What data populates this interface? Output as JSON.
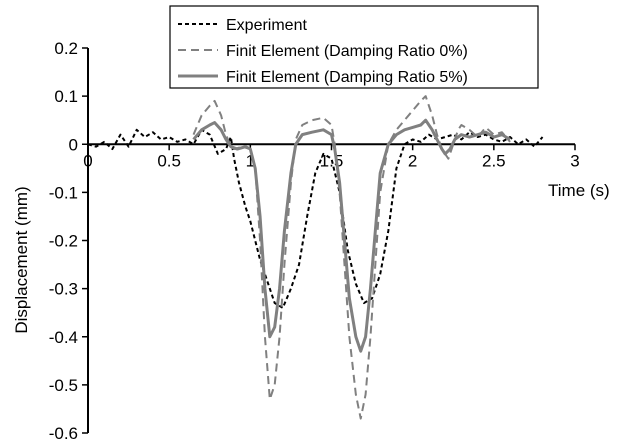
{
  "chart_data": {
    "type": "line",
    "title": "",
    "xlabel": "Time (s)",
    "ylabel": "Displacement (mm)",
    "xlim": [
      0,
      3
    ],
    "ylim": [
      -0.6,
      0.2
    ],
    "x_ticks": [
      0,
      0.5,
      1,
      1.5,
      2,
      2.5,
      3
    ],
    "x_tick_labels": [
      "0",
      "0.5",
      "1",
      "1.5",
      "2",
      "2.5",
      "3"
    ],
    "y_ticks": [
      0.2,
      0.1,
      0,
      -0.1,
      -0.2,
      -0.3,
      -0.4,
      -0.5,
      -0.6
    ],
    "y_tick_labels": [
      "0.2",
      "0.1",
      "0",
      "-0.1",
      "-0.2",
      "-0.3",
      "-0.4",
      "-0.5",
      "-0.6"
    ],
    "grid": false,
    "legend_position": "top-right",
    "series": [
      {
        "name": "Experiment",
        "style": "dotted",
        "color": "#000000",
        "points": [
          [
            0,
            0
          ],
          [
            0.05,
            -0.005
          ],
          [
            0.1,
            0.005
          ],
          [
            0.15,
            -0.01
          ],
          [
            0.2,
            0.02
          ],
          [
            0.25,
            -0.005
          ],
          [
            0.3,
            0.03
          ],
          [
            0.35,
            0.015
          ],
          [
            0.4,
            0.025
          ],
          [
            0.45,
            0.01
          ],
          [
            0.5,
            0.015
          ],
          [
            0.55,
            0.005
          ],
          [
            0.6,
            0.01
          ],
          [
            0.65,
            0.0
          ],
          [
            0.7,
            0.03
          ],
          [
            0.75,
            0.02
          ],
          [
            0.8,
            -0.02
          ],
          [
            0.85,
            -0.01
          ],
          [
            0.88,
            0.015
          ],
          [
            0.9,
            -0.03
          ],
          [
            0.93,
            -0.08
          ],
          [
            0.97,
            -0.13
          ],
          [
            1.0,
            -0.16
          ],
          [
            1.03,
            -0.2
          ],
          [
            1.06,
            -0.24
          ],
          [
            1.1,
            -0.28
          ],
          [
            1.15,
            -0.33
          ],
          [
            1.2,
            -0.34
          ],
          [
            1.25,
            -0.3
          ],
          [
            1.3,
            -0.25
          ],
          [
            1.35,
            -0.15
          ],
          [
            1.4,
            -0.06
          ],
          [
            1.45,
            -0.02
          ],
          [
            1.5,
            -0.03
          ],
          [
            1.55,
            -0.1
          ],
          [
            1.6,
            -0.22
          ],
          [
            1.65,
            -0.29
          ],
          [
            1.7,
            -0.33
          ],
          [
            1.75,
            -0.32
          ],
          [
            1.8,
            -0.27
          ],
          [
            1.85,
            -0.18
          ],
          [
            1.9,
            -0.05
          ],
          [
            1.95,
            0.0
          ],
          [
            2.0,
            0.01
          ],
          [
            2.05,
            0.005
          ],
          [
            2.1,
            0.02
          ],
          [
            2.15,
            0.01
          ],
          [
            2.2,
            0.015
          ],
          [
            2.25,
            0.02
          ],
          [
            2.3,
            0.01
          ],
          [
            2.35,
            0.025
          ],
          [
            2.4,
            0.015
          ],
          [
            2.45,
            0.02
          ],
          [
            2.5,
            0.01
          ],
          [
            2.55,
            0.005
          ],
          [
            2.6,
            0.015
          ],
          [
            2.65,
            0.0
          ],
          [
            2.7,
            0.01
          ],
          [
            2.75,
            -0.005
          ],
          [
            2.8,
            0.015
          ]
        ]
      },
      {
        "name": "Finit Element (Damping Ratio 0%)",
        "style": "dashed",
        "color": "#808080",
        "points": [
          [
            0.65,
            0.02
          ],
          [
            0.7,
            0.06
          ],
          [
            0.75,
            0.08
          ],
          [
            0.78,
            0.09
          ],
          [
            0.82,
            0.06
          ],
          [
            0.85,
            0.02
          ],
          [
            0.88,
            -0.005
          ],
          [
            0.9,
            -0.01
          ],
          [
            0.95,
            -0.005
          ],
          [
            1.0,
            -0.01
          ],
          [
            1.03,
            -0.05
          ],
          [
            1.06,
            -0.2
          ],
          [
            1.09,
            -0.4
          ],
          [
            1.12,
            -0.53
          ],
          [
            1.15,
            -0.5
          ],
          [
            1.18,
            -0.4
          ],
          [
            1.21,
            -0.25
          ],
          [
            1.25,
            -0.08
          ],
          [
            1.28,
            0.01
          ],
          [
            1.32,
            0.04
          ],
          [
            1.38,
            0.05
          ],
          [
            1.45,
            0.055
          ],
          [
            1.5,
            0.04
          ],
          [
            1.52,
            0.0
          ],
          [
            1.55,
            -0.1
          ],
          [
            1.58,
            -0.25
          ],
          [
            1.61,
            -0.4
          ],
          [
            1.65,
            -0.52
          ],
          [
            1.68,
            -0.57
          ],
          [
            1.71,
            -0.52
          ],
          [
            1.74,
            -0.4
          ],
          [
            1.77,
            -0.25
          ],
          [
            1.8,
            -0.1
          ],
          [
            1.85,
            0.0
          ],
          [
            1.9,
            0.03
          ],
          [
            1.95,
            0.05
          ],
          [
            2.0,
            0.07
          ],
          [
            2.05,
            0.09
          ],
          [
            2.08,
            0.1
          ],
          [
            2.12,
            0.06
          ],
          [
            2.15,
            0.02
          ],
          [
            2.18,
            -0.01
          ],
          [
            2.2,
            -0.02
          ],
          [
            2.22,
            -0.03
          ],
          [
            2.25,
            0.0
          ],
          [
            2.28,
            0.03
          ],
          [
            2.3,
            0.04
          ],
          [
            2.35,
            0.03
          ],
          [
            2.4,
            0.015
          ],
          [
            2.45,
            0.035
          ],
          [
            2.5,
            0.02
          ],
          [
            2.55,
            0.025
          ],
          [
            2.6,
            0.005
          ]
        ]
      },
      {
        "name": "Finit Element (Damping Ratio 5%)",
        "style": "solid",
        "color": "#808080",
        "points": [
          [
            0.65,
            0.01
          ],
          [
            0.7,
            0.03
          ],
          [
            0.75,
            0.04
          ],
          [
            0.78,
            0.045
          ],
          [
            0.82,
            0.03
          ],
          [
            0.85,
            0.01
          ],
          [
            0.88,
            -0.005
          ],
          [
            0.92,
            -0.01
          ],
          [
            0.97,
            -0.005
          ],
          [
            1.0,
            -0.01
          ],
          [
            1.03,
            -0.05
          ],
          [
            1.06,
            -0.15
          ],
          [
            1.09,
            -0.3
          ],
          [
            1.12,
            -0.4
          ],
          [
            1.15,
            -0.38
          ],
          [
            1.18,
            -0.3
          ],
          [
            1.21,
            -0.18
          ],
          [
            1.25,
            -0.06
          ],
          [
            1.28,
            0.0
          ],
          [
            1.32,
            0.02
          ],
          [
            1.38,
            0.025
          ],
          [
            1.45,
            0.03
          ],
          [
            1.5,
            0.02
          ],
          [
            1.52,
            -0.01
          ],
          [
            1.55,
            -0.08
          ],
          [
            1.58,
            -0.2
          ],
          [
            1.61,
            -0.32
          ],
          [
            1.65,
            -0.4
          ],
          [
            1.68,
            -0.43
          ],
          [
            1.71,
            -0.4
          ],
          [
            1.74,
            -0.3
          ],
          [
            1.77,
            -0.18
          ],
          [
            1.8,
            -0.06
          ],
          [
            1.85,
            0.0
          ],
          [
            1.9,
            0.02
          ],
          [
            1.95,
            0.03
          ],
          [
            2.0,
            0.035
          ],
          [
            2.05,
            0.04
          ],
          [
            2.08,
            0.05
          ],
          [
            2.12,
            0.03
          ],
          [
            2.15,
            0.01
          ],
          [
            2.18,
            -0.01
          ],
          [
            2.2,
            -0.02
          ],
          [
            2.23,
            -0.01
          ],
          [
            2.26,
            0.01
          ],
          [
            2.3,
            0.02
          ],
          [
            2.35,
            0.015
          ],
          [
            2.4,
            0.02
          ],
          [
            2.45,
            0.025
          ],
          [
            2.5,
            0.015
          ],
          [
            2.55,
            0.02
          ],
          [
            2.6,
            0.01
          ]
        ]
      }
    ]
  }
}
